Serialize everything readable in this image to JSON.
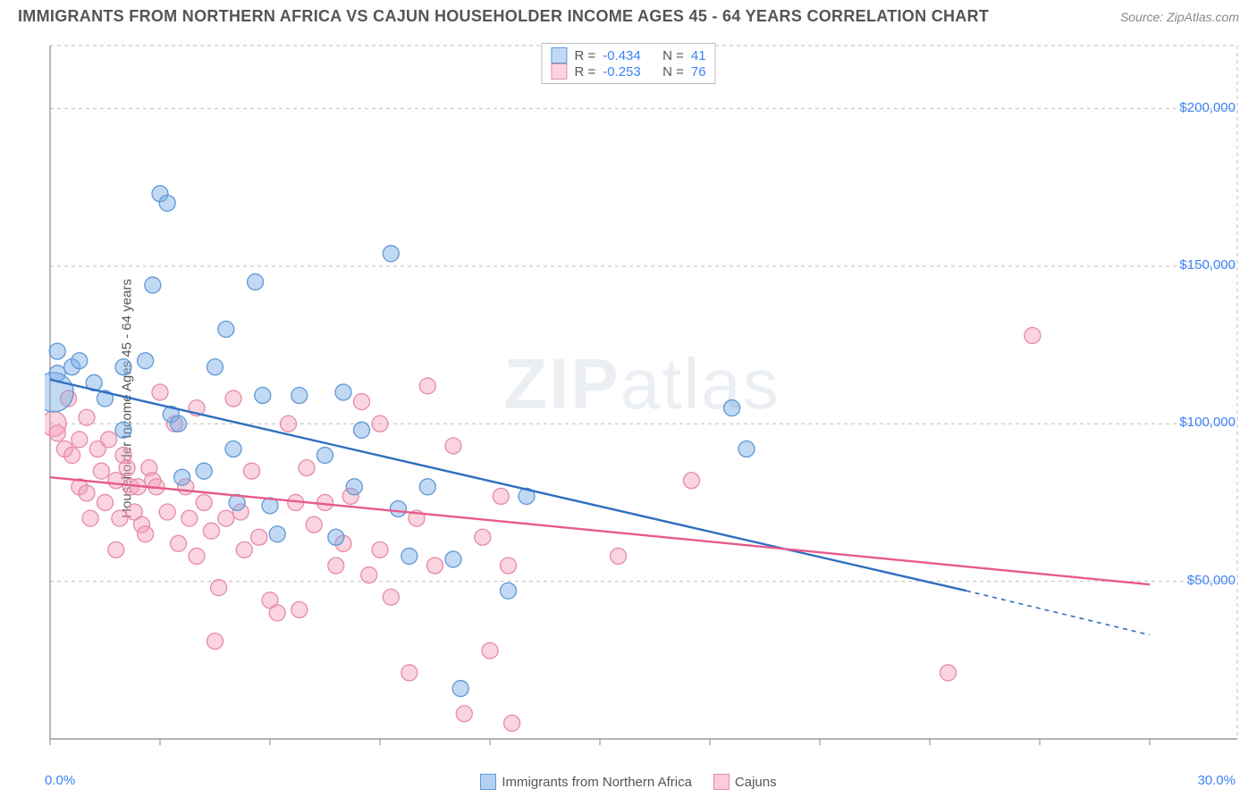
{
  "title": "IMMIGRANTS FROM NORTHERN AFRICA VS CAJUN HOUSEHOLDER INCOME AGES 45 - 64 YEARS CORRELATION CHART",
  "source_label": "Source:",
  "source_name": "ZipAtlas.com",
  "watermark_a": "ZIP",
  "watermark_b": "atlas",
  "ylabel": "Householder Income Ages 45 - 64 years",
  "chart": {
    "type": "scatter",
    "xlim": [
      0,
      30
    ],
    "ylim": [
      0,
      220000
    ],
    "x_tick_positions": [
      0,
      3,
      6,
      9,
      12,
      15,
      18,
      21,
      24,
      27,
      30
    ],
    "x_label_min": "0.0%",
    "x_label_max": "30.0%",
    "y_ticks": [
      {
        "v": 50000,
        "label": "$50,000"
      },
      {
        "v": 100000,
        "label": "$100,000"
      },
      {
        "v": 150000,
        "label": "$150,000"
      },
      {
        "v": 200000,
        "label": "$200,000"
      }
    ],
    "grid_color": "#bfbfbf",
    "grid_dash": "4,4",
    "axis_color": "#888",
    "background_color": "#ffffff",
    "series": [
      {
        "name": "Immigrants from Northern Africa",
        "fill": "rgba(120,170,230,0.45)",
        "stroke": "#5f98d6",
        "line_color": "#2f6fc0",
        "marker_r": 9,
        "R": "-0.434",
        "N": "41",
        "regression": {
          "x1": 0,
          "y1": 114000,
          "x2": 25,
          "y2": 47000,
          "extrap_x2": 30,
          "extrap_y2": 33000
        },
        "points": [
          {
            "x": 0.1,
            "y": 110000,
            "r": 22
          },
          {
            "x": 0.2,
            "y": 123000
          },
          {
            "x": 0.2,
            "y": 116000
          },
          {
            "x": 0.6,
            "y": 118000
          },
          {
            "x": 0.8,
            "y": 120000
          },
          {
            "x": 1.2,
            "y": 113000
          },
          {
            "x": 1.5,
            "y": 108000
          },
          {
            "x": 2.0,
            "y": 118000
          },
          {
            "x": 2.0,
            "y": 98000
          },
          {
            "x": 2.6,
            "y": 120000
          },
          {
            "x": 2.8,
            "y": 144000
          },
          {
            "x": 3.0,
            "y": 173000
          },
          {
            "x": 3.2,
            "y": 170000
          },
          {
            "x": 3.3,
            "y": 103000
          },
          {
            "x": 3.5,
            "y": 100000
          },
          {
            "x": 3.6,
            "y": 83000
          },
          {
            "x": 4.2,
            "y": 85000
          },
          {
            "x": 4.5,
            "y": 118000
          },
          {
            "x": 5.0,
            "y": 92000
          },
          {
            "x": 5.1,
            "y": 75000
          },
          {
            "x": 5.6,
            "y": 145000
          },
          {
            "x": 5.8,
            "y": 109000
          },
          {
            "x": 6.0,
            "y": 74000
          },
          {
            "x": 6.2,
            "y": 65000
          },
          {
            "x": 6.8,
            "y": 109000
          },
          {
            "x": 7.5,
            "y": 90000
          },
          {
            "x": 7.8,
            "y": 64000
          },
          {
            "x": 8.0,
            "y": 110000
          },
          {
            "x": 8.3,
            "y": 80000
          },
          {
            "x": 8.5,
            "y": 98000
          },
          {
            "x": 9.3,
            "y": 154000
          },
          {
            "x": 9.5,
            "y": 73000
          },
          {
            "x": 9.8,
            "y": 58000
          },
          {
            "x": 11.0,
            "y": 57000
          },
          {
            "x": 11.2,
            "y": 16000
          },
          {
            "x": 12.5,
            "y": 47000
          },
          {
            "x": 13.0,
            "y": 77000
          },
          {
            "x": 18.6,
            "y": 105000
          },
          {
            "x": 19.0,
            "y": 92000
          },
          {
            "x": 10.3,
            "y": 80000
          },
          {
            "x": 4.8,
            "y": 130000
          }
        ]
      },
      {
        "name": "Cajuns",
        "fill": "rgba(245,160,185,0.45)",
        "stroke": "#e78aa8",
        "line_color": "#e75a8a",
        "marker_r": 9,
        "R": "-0.253",
        "N": "76",
        "regression": {
          "x1": 0,
          "y1": 83000,
          "x2": 30,
          "y2": 49000
        },
        "points": [
          {
            "x": 0.1,
            "y": 100000,
            "r": 14
          },
          {
            "x": 0.2,
            "y": 97000
          },
          {
            "x": 0.4,
            "y": 92000
          },
          {
            "x": 0.5,
            "y": 108000
          },
          {
            "x": 0.6,
            "y": 90000
          },
          {
            "x": 0.8,
            "y": 95000
          },
          {
            "x": 0.8,
            "y": 80000
          },
          {
            "x": 1.0,
            "y": 102000
          },
          {
            "x": 1.0,
            "y": 78000
          },
          {
            "x": 1.1,
            "y": 70000
          },
          {
            "x": 1.3,
            "y": 92000
          },
          {
            "x": 1.4,
            "y": 85000
          },
          {
            "x": 1.5,
            "y": 75000
          },
          {
            "x": 1.6,
            "y": 95000
          },
          {
            "x": 1.8,
            "y": 82000
          },
          {
            "x": 1.8,
            "y": 60000
          },
          {
            "x": 1.9,
            "y": 70000
          },
          {
            "x": 2.0,
            "y": 90000
          },
          {
            "x": 2.1,
            "y": 86000
          },
          {
            "x": 2.2,
            "y": 80000
          },
          {
            "x": 2.3,
            "y": 72000
          },
          {
            "x": 2.4,
            "y": 80000
          },
          {
            "x": 2.5,
            "y": 68000
          },
          {
            "x": 2.6,
            "y": 65000
          },
          {
            "x": 2.7,
            "y": 86000
          },
          {
            "x": 2.8,
            "y": 82000
          },
          {
            "x": 2.9,
            "y": 80000
          },
          {
            "x": 3.0,
            "y": 110000
          },
          {
            "x": 3.2,
            "y": 72000
          },
          {
            "x": 3.4,
            "y": 100000
          },
          {
            "x": 3.5,
            "y": 62000
          },
          {
            "x": 3.7,
            "y": 80000
          },
          {
            "x": 3.8,
            "y": 70000
          },
          {
            "x": 4.0,
            "y": 105000
          },
          {
            "x": 4.0,
            "y": 58000
          },
          {
            "x": 4.2,
            "y": 75000
          },
          {
            "x": 4.4,
            "y": 66000
          },
          {
            "x": 4.5,
            "y": 31000
          },
          {
            "x": 4.6,
            "y": 48000
          },
          {
            "x": 4.8,
            "y": 70000
          },
          {
            "x": 5.0,
            "y": 108000
          },
          {
            "x": 5.2,
            "y": 72000
          },
          {
            "x": 5.3,
            "y": 60000
          },
          {
            "x": 5.5,
            "y": 85000
          },
          {
            "x": 5.7,
            "y": 64000
          },
          {
            "x": 6.0,
            "y": 44000
          },
          {
            "x": 6.2,
            "y": 40000
          },
          {
            "x": 6.5,
            "y": 100000
          },
          {
            "x": 6.7,
            "y": 75000
          },
          {
            "x": 6.8,
            "y": 41000
          },
          {
            "x": 7.0,
            "y": 86000
          },
          {
            "x": 7.2,
            "y": 68000
          },
          {
            "x": 7.5,
            "y": 75000
          },
          {
            "x": 7.8,
            "y": 55000
          },
          {
            "x": 8.0,
            "y": 62000
          },
          {
            "x": 8.2,
            "y": 77000
          },
          {
            "x": 8.5,
            "y": 107000
          },
          {
            "x": 8.7,
            "y": 52000
          },
          {
            "x": 9.0,
            "y": 60000
          },
          {
            "x": 9.0,
            "y": 100000
          },
          {
            "x": 9.3,
            "y": 45000
          },
          {
            "x": 9.8,
            "y": 21000
          },
          {
            "x": 10.0,
            "y": 70000
          },
          {
            "x": 10.3,
            "y": 112000
          },
          {
            "x": 10.5,
            "y": 55000
          },
          {
            "x": 11.0,
            "y": 93000
          },
          {
            "x": 11.3,
            "y": 8000
          },
          {
            "x": 11.8,
            "y": 64000
          },
          {
            "x": 12.0,
            "y": 28000
          },
          {
            "x": 12.3,
            "y": 77000
          },
          {
            "x": 12.5,
            "y": 55000
          },
          {
            "x": 12.6,
            "y": 5000
          },
          {
            "x": 15.5,
            "y": 58000
          },
          {
            "x": 17.5,
            "y": 82000
          },
          {
            "x": 24.5,
            "y": 21000
          },
          {
            "x": 26.8,
            "y": 128000
          }
        ]
      }
    ],
    "bottom_legend": [
      {
        "label": "Immigrants from Northern Africa",
        "fill": "rgba(120,170,230,0.55)",
        "stroke": "#5f98d6"
      },
      {
        "label": "Cajuns",
        "fill": "rgba(245,160,185,0.55)",
        "stroke": "#e78aa8"
      }
    ],
    "stat_labels": {
      "R": "R =",
      "N": "N ="
    }
  }
}
